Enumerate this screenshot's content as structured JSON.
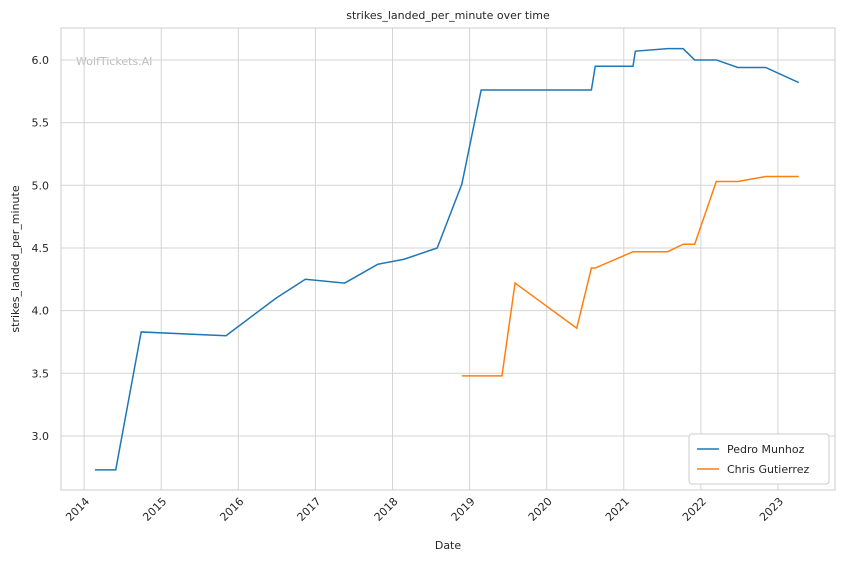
{
  "chart_data": {
    "type": "line",
    "title": "strikes_landed_per_minute over time",
    "xlabel": "Date",
    "ylabel": "strikes_landed_per_minute",
    "watermark": "WolfTickets.AI",
    "xlim": [
      2013.7,
      2023.74
    ],
    "ylim": [
      2.569,
      6.255
    ],
    "xticks": [
      2014,
      2015,
      2016,
      2017,
      2018,
      2019,
      2020,
      2021,
      2022,
      2023
    ],
    "yticks": [
      {
        "value": 3,
        "label": "3.0"
      },
      3.5,
      {
        "value": 4,
        "label": "4.0"
      },
      4.5,
      {
        "value": 5,
        "label": "5.0"
      },
      5.5,
      {
        "value": 6,
        "label": "6.0"
      }
    ],
    "grid": true,
    "legend": "lower right",
    "series": [
      {
        "name": "Pedro Munhoz",
        "color": "#1f77b4",
        "x": [
          2014.14,
          2014.41,
          2014.74,
          2015.84,
          2016.49,
          2016.87,
          2017.38,
          2017.81,
          2018.15,
          2018.58,
          2018.9,
          2019.15,
          2020.58,
          2020.63,
          2021.12,
          2021.15,
          2021.57,
          2021.77,
          2021.92,
          2022.2,
          2022.48,
          2022.84,
          2023.27
        ],
        "values": [
          2.73,
          2.73,
          3.83,
          3.8,
          4.1,
          4.25,
          4.22,
          4.37,
          4.41,
          4.5,
          5.01,
          5.76,
          5.76,
          5.95,
          5.95,
          6.07,
          6.09,
          6.09,
          6.0,
          6.0,
          5.94,
          5.94,
          5.82
        ]
      },
      {
        "name": "Chris Gutierrez",
        "color": "#ff7f0e",
        "x": [
          2018.9,
          2019.42,
          2019.59,
          2020.39,
          2020.58,
          2020.63,
          2021.12,
          2021.57,
          2021.77,
          2021.92,
          2022.2,
          2022.48,
          2022.84,
          2023.27
        ],
        "values": [
          3.48,
          3.48,
          4.22,
          3.86,
          4.34,
          4.34,
          4.47,
          4.47,
          4.53,
          4.53,
          5.03,
          5.03,
          5.07,
          5.07
        ]
      }
    ]
  }
}
